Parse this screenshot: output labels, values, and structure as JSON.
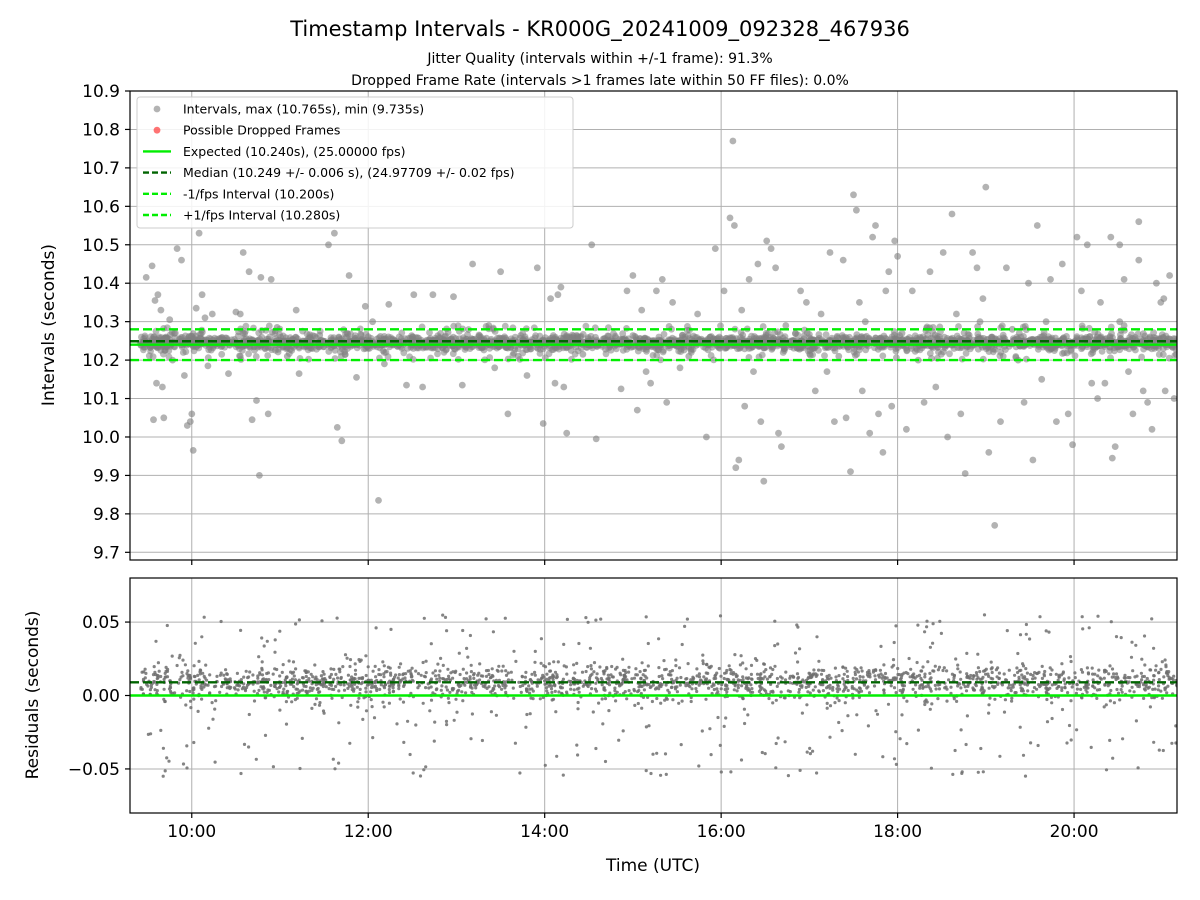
{
  "chart_data": [
    {
      "type": "scatter",
      "title": "Timestamp Intervals - KR000G_20241009_092328_467936",
      "subtitles": [
        "Jitter Quality (intervals within +/-1 frame): 91.3%",
        "Dropped Frame Rate (intervals >1 frames late within 50 FF files): 0.0%"
      ],
      "xlabel": "",
      "ylabel": "Intervals (seconds)",
      "xlim": [
        "09:18",
        "21:10"
      ],
      "ylim": [
        9.68,
        10.9
      ],
      "yticks": [
        "9.7",
        "9.8",
        "9.9",
        "10.0",
        "10.1",
        "10.2",
        "10.3",
        "10.4",
        "10.5",
        "10.6",
        "10.7",
        "10.8",
        "10.9"
      ],
      "grid": true,
      "legend_position": "top-left",
      "series": [
        {
          "name": "Intervals, max (10.765s), min (9.735s)",
          "kind": "scatter",
          "color": "#808080",
          "max": 10.765,
          "min": 9.735,
          "time_range": [
            "09:25",
            "21:10"
          ],
          "core_center": 10.245,
          "core_spread": 0.015
        },
        {
          "name": "Possible Dropped Frames",
          "kind": "scatter",
          "color": "#ff0000",
          "count": 0
        },
        {
          "name": "Expected (10.240s), (25.00000 fps)",
          "kind": "hline",
          "y": 10.24,
          "color": "#00ee00",
          "style": "solid"
        },
        {
          "name": "Median (10.249 +/- 0.006 s), (24.97709 +/- 0.02 fps)",
          "kind": "hline",
          "y": 10.249,
          "color": "#006400",
          "style": "dashed"
        },
        {
          "name": "-1/fps Interval (10.200s)",
          "kind": "hline",
          "y": 10.2,
          "color": "#00ee00",
          "style": "dashed"
        },
        {
          "name": "+1/fps Interval (10.280s)",
          "kind": "hline",
          "y": 10.28,
          "color": "#00ee00",
          "style": "dashed"
        }
      ],
      "outliers": [
        [
          "09:29",
          10.415
        ],
        [
          "09:33",
          10.445
        ],
        [
          "09:35",
          10.355
        ],
        [
          "09:37",
          10.37
        ],
        [
          "09:39",
          10.33
        ],
        [
          "09:41",
          10.05
        ],
        [
          "09:34",
          10.045
        ],
        [
          "09:36",
          10.14
        ],
        [
          "09:40",
          10.13
        ],
        [
          "09:45",
          10.305
        ],
        [
          "09:47",
          10.2
        ],
        [
          "09:50",
          10.49
        ],
        [
          "09:53",
          10.46
        ],
        [
          "09:55",
          10.16
        ],
        [
          "09:57",
          10.03
        ],
        [
          "09:59",
          10.04
        ],
        [
          "10:00",
          10.06
        ],
        [
          "10:01",
          9.965
        ],
        [
          "10:03",
          10.335
        ],
        [
          "10:05",
          10.53
        ],
        [
          "10:07",
          10.37
        ],
        [
          "10:09",
          10.31
        ],
        [
          "10:11",
          10.185
        ],
        [
          "10:14",
          10.32
        ],
        [
          "10:20",
          10.235
        ],
        [
          "10:25",
          10.165
        ],
        [
          "10:30",
          10.325
        ],
        [
          "10:33",
          10.32
        ],
        [
          "10:35",
          10.48
        ],
        [
          "10:39",
          10.43
        ],
        [
          "10:41",
          10.045
        ],
        [
          "10:44",
          10.095
        ],
        [
          "10:46",
          9.9
        ],
        [
          "10:47",
          10.415
        ],
        [
          "10:52",
          10.06
        ],
        [
          "10:54",
          10.41
        ],
        [
          "10:58",
          10.285
        ],
        [
          "11:05",
          10.21
        ],
        [
          "11:11",
          10.33
        ],
        [
          "11:13",
          10.165
        ],
        [
          "11:22",
          10.23
        ],
        [
          "11:27",
          10.265
        ],
        [
          "11:33",
          10.5
        ],
        [
          "11:37",
          10.53
        ],
        [
          "11:39",
          10.025
        ],
        [
          "11:42",
          9.99
        ],
        [
          "11:47",
          10.42
        ],
        [
          "11:52",
          10.155
        ],
        [
          "11:58",
          10.34
        ],
        [
          "12:03",
          10.3
        ],
        [
          "12:07",
          9.835
        ],
        [
          "12:11",
          10.19
        ],
        [
          "12:14",
          10.345
        ],
        [
          "12:20",
          10.235
        ],
        [
          "12:26",
          10.135
        ],
        [
          "12:31",
          10.37
        ],
        [
          "12:37",
          10.13
        ],
        [
          "12:44",
          10.37
        ],
        [
          "12:52",
          10.26
        ],
        [
          "12:58",
          10.365
        ],
        [
          "13:04",
          10.135
        ],
        [
          "13:11",
          10.45
        ],
        [
          "13:17",
          10.235
        ],
        [
          "13:22",
          10.29
        ],
        [
          "13:26",
          10.18
        ],
        [
          "13:30",
          10.43
        ],
        [
          "13:35",
          10.06
        ],
        [
          "13:42",
          10.21
        ],
        [
          "13:48",
          10.16
        ],
        [
          "13:55",
          10.44
        ],
        [
          "13:59",
          10.035
        ],
        [
          "14:04",
          10.36
        ],
        [
          "14:07",
          10.14
        ],
        [
          "14:09",
          10.37
        ],
        [
          "14:11",
          10.39
        ],
        [
          "14:13",
          10.13
        ],
        [
          "14:15",
          10.01
        ],
        [
          "14:18",
          10.225
        ],
        [
          "14:26",
          10.215
        ],
        [
          "14:32",
          10.5
        ],
        [
          "14:35",
          9.995
        ],
        [
          "14:45",
          10.25
        ],
        [
          "14:52",
          10.125
        ],
        [
          "14:56",
          10.38
        ],
        [
          "15:00",
          10.42
        ],
        [
          "15:03",
          10.07
        ],
        [
          "15:06",
          10.33
        ],
        [
          "15:09",
          10.17
        ],
        [
          "15:12",
          10.14
        ],
        [
          "15:16",
          10.38
        ],
        [
          "15:20",
          10.41
        ],
        [
          "15:23",
          10.09
        ],
        [
          "15:27",
          10.35
        ],
        [
          "15:32",
          10.18
        ],
        [
          "15:38",
          10.21
        ],
        [
          "15:44",
          10.32
        ],
        [
          "15:50",
          10.0
        ],
        [
          "15:56",
          10.49
        ],
        [
          "16:02",
          10.38
        ],
        [
          "16:06",
          10.57
        ],
        [
          "16:08",
          10.77
        ],
        [
          "16:09",
          10.55
        ],
        [
          "16:10",
          9.92
        ],
        [
          "16:12",
          9.94
        ],
        [
          "16:14",
          10.33
        ],
        [
          "16:16",
          10.08
        ],
        [
          "16:19",
          10.41
        ],
        [
          "16:22",
          10.17
        ],
        [
          "16:25",
          10.45
        ],
        [
          "16:27",
          10.04
        ],
        [
          "16:29",
          9.885
        ],
        [
          "16:31",
          10.51
        ],
        [
          "16:34",
          10.49
        ],
        [
          "16:37",
          10.44
        ],
        [
          "16:39",
          10.01
        ],
        [
          "16:41",
          9.975
        ],
        [
          "16:44",
          10.29
        ],
        [
          "16:48",
          10.25
        ],
        [
          "16:54",
          10.38
        ],
        [
          "16:58",
          10.35
        ],
        [
          "17:04",
          10.12
        ],
        [
          "17:08",
          10.32
        ],
        [
          "17:12",
          10.17
        ],
        [
          "17:14",
          10.48
        ],
        [
          "17:17",
          10.04
        ],
        [
          "17:20",
          10.21
        ],
        [
          "17:23",
          10.46
        ],
        [
          "17:25",
          10.05
        ],
        [
          "17:28",
          9.91
        ],
        [
          "17:30",
          10.63
        ],
        [
          "17:32",
          10.59
        ],
        [
          "17:34",
          10.35
        ],
        [
          "17:36",
          10.12
        ],
        [
          "17:38",
          10.3
        ],
        [
          "17:41",
          10.01
        ],
        [
          "17:43",
          10.52
        ],
        [
          "17:45",
          10.55
        ],
        [
          "17:47",
          10.06
        ],
        [
          "17:50",
          9.96
        ],
        [
          "17:52",
          10.38
        ],
        [
          "17:54",
          10.43
        ],
        [
          "17:56",
          10.08
        ],
        [
          "17:58",
          10.51
        ],
        [
          "18:00",
          10.47
        ],
        [
          "18:03",
          10.27
        ],
        [
          "18:06",
          10.02
        ],
        [
          "18:10",
          10.38
        ],
        [
          "18:14",
          10.2
        ],
        [
          "18:18",
          10.09
        ],
        [
          "18:22",
          10.43
        ],
        [
          "18:26",
          10.13
        ],
        [
          "18:31",
          10.48
        ],
        [
          "18:34",
          10.0
        ],
        [
          "18:37",
          10.58
        ],
        [
          "18:40",
          10.32
        ],
        [
          "18:43",
          10.06
        ],
        [
          "18:46",
          9.905
        ],
        [
          "18:48",
          10.25
        ],
        [
          "18:51",
          10.48
        ],
        [
          "18:54",
          10.44
        ],
        [
          "18:56",
          10.3
        ],
        [
          "18:58",
          10.36
        ],
        [
          "19:00",
          10.65
        ],
        [
          "19:02",
          9.96
        ],
        [
          "19:04",
          10.26
        ],
        [
          "19:06",
          9.77
        ],
        [
          "19:10",
          10.04
        ],
        [
          "19:14",
          10.44
        ],
        [
          "19:18",
          10.28
        ],
        [
          "19:22",
          10.2
        ],
        [
          "19:26",
          10.09
        ],
        [
          "19:29",
          10.4
        ],
        [
          "19:32",
          9.94
        ],
        [
          "19:35",
          10.55
        ],
        [
          "19:38",
          10.15
        ],
        [
          "19:41",
          10.3
        ],
        [
          "19:44",
          10.41
        ],
        [
          "19:48",
          10.04
        ],
        [
          "19:52",
          10.45
        ],
        [
          "19:56",
          10.06
        ],
        [
          "19:59",
          9.98
        ],
        [
          "20:02",
          10.52
        ],
        [
          "20:05",
          10.38
        ],
        [
          "20:09",
          10.5
        ],
        [
          "20:12",
          10.14
        ],
        [
          "20:16",
          10.1
        ],
        [
          "20:18",
          10.35
        ],
        [
          "20:21",
          10.14
        ],
        [
          "20:25",
          10.52
        ],
        [
          "20:28",
          9.975
        ],
        [
          "20:31",
          10.3
        ],
        [
          "20:34",
          10.41
        ],
        [
          "20:37",
          10.17
        ],
        [
          "20:40",
          10.06
        ],
        [
          "20:44",
          10.46
        ],
        [
          "20:47",
          10.12
        ],
        [
          "20:50",
          10.09
        ],
        [
          "20:53",
          10.02
        ],
        [
          "20:56",
          10.4
        ],
        [
          "20:59",
          10.35
        ],
        [
          "21:02",
          10.12
        ],
        [
          "21:05",
          10.42
        ],
        [
          "21:08",
          10.1
        ],
        [
          "21:01",
          10.36
        ],
        [
          "20:44",
          10.56
        ],
        [
          "20:31",
          10.5
        ],
        [
          "20:26",
          9.945
        ],
        [
          "20:34",
          10.29
        ]
      ]
    },
    {
      "type": "scatter",
      "xlabel": "Time (UTC)",
      "ylabel": "Residuals (seconds)",
      "xlim": [
        "09:18",
        "21:10"
      ],
      "ylim": [
        -0.08,
        0.08
      ],
      "xticks": [
        "10:00",
        "12:00",
        "14:00",
        "16:00",
        "18:00",
        "20:00"
      ],
      "yticks": [
        "−0.05",
        "0.00",
        "0.05"
      ],
      "grid": true,
      "series": [
        {
          "name": "residuals",
          "kind": "scatter",
          "color": "#6e6e6e",
          "core_center": 0.009,
          "core_spread": 0.007
        },
        {
          "name": "expected",
          "kind": "hline",
          "y": 0.0,
          "color": "#00ee00",
          "style": "solid"
        },
        {
          "name": "median",
          "kind": "hline",
          "y": 0.009,
          "color": "#006400",
          "style": "dashed"
        }
      ]
    }
  ]
}
